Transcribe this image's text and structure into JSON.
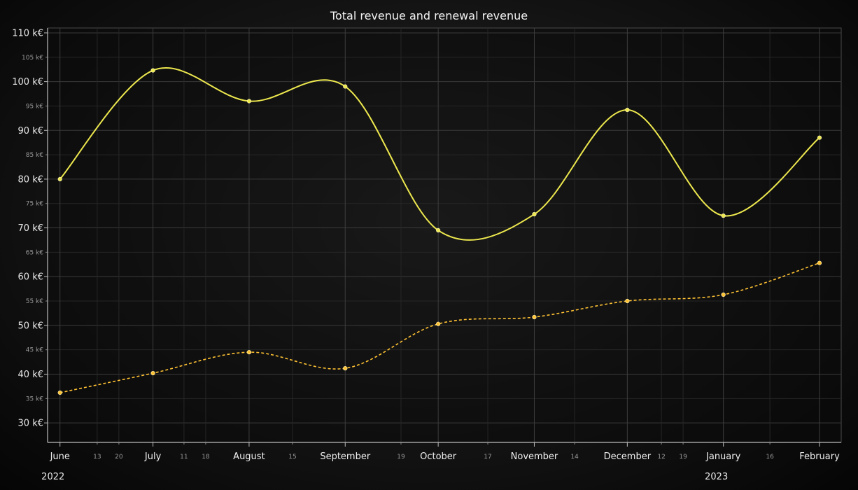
{
  "chart_data": {
    "type": "line",
    "title": "Total revenue and renewal revenue",
    "xlabel": "",
    "ylabel": "",
    "ylim": [
      26,
      111
    ],
    "grid": true,
    "legend": "none",
    "y_ticks_major": [
      {
        "value": 110,
        "label": "110 k€"
      },
      {
        "value": 100,
        "label": "100 k€"
      },
      {
        "value": 90,
        "label": "90 k€"
      },
      {
        "value": 80,
        "label": "80 k€"
      },
      {
        "value": 70,
        "label": "70 k€"
      },
      {
        "value": 60,
        "label": "60 k€"
      },
      {
        "value": 50,
        "label": "50 k€"
      },
      {
        "value": 40,
        "label": "40 k€"
      },
      {
        "value": 30,
        "label": "30 k€"
      }
    ],
    "y_ticks_minor": [
      {
        "value": 105,
        "label": "105 k€"
      },
      {
        "value": 95,
        "label": "95 k€"
      },
      {
        "value": 85,
        "label": "85 k€"
      },
      {
        "value": 75,
        "label": "75 k€"
      },
      {
        "value": 65,
        "label": "65 k€"
      },
      {
        "value": 55,
        "label": "55 k€"
      },
      {
        "value": 45,
        "label": "45 k€"
      },
      {
        "value": 35,
        "label": "35 k€"
      }
    ],
    "xlim": [
      "2022-05-28",
      "2023-02-08"
    ],
    "x_ticks_major": [
      {
        "date": "2022-06-01",
        "label": "June"
      },
      {
        "date": "2022-07-01",
        "label": "July"
      },
      {
        "date": "2022-08-01",
        "label": "August"
      },
      {
        "date": "2022-09-01",
        "label": "September"
      },
      {
        "date": "2022-10-01",
        "label": "October"
      },
      {
        "date": "2022-11-01",
        "label": "November"
      },
      {
        "date": "2022-12-01",
        "label": "December"
      },
      {
        "date": "2023-01-01",
        "label": "January"
      },
      {
        "date": "2023-02-01",
        "label": "February"
      }
    ],
    "x_ticks_minor": [
      {
        "date": "2022-06-13",
        "label": "13"
      },
      {
        "date": "2022-06-20",
        "label": "20"
      },
      {
        "date": "2022-07-11",
        "label": "11"
      },
      {
        "date": "2022-07-18",
        "label": "18"
      },
      {
        "date": "2022-08-15",
        "label": "15"
      },
      {
        "date": "2022-09-19",
        "label": "19"
      },
      {
        "date": "2022-10-17",
        "label": "17"
      },
      {
        "date": "2022-11-14",
        "label": "14"
      },
      {
        "date": "2022-12-12",
        "label": "12"
      },
      {
        "date": "2022-12-19",
        "label": "19"
      },
      {
        "date": "2023-01-16",
        "label": "16"
      }
    ],
    "x_years": [
      {
        "date": "2022-06-01",
        "label": "2022"
      },
      {
        "date": "2023-01-01",
        "label": "2023"
      }
    ],
    "x": [
      "2022-06-01",
      "2022-07-01",
      "2022-08-01",
      "2022-09-01",
      "2022-10-01",
      "2022-11-01",
      "2022-12-01",
      "2023-01-01",
      "2023-02-01"
    ],
    "series": [
      {
        "values": [
          80,
          102.3,
          96,
          99,
          69.5,
          72.8,
          94.2,
          72.5,
          88.5
        ],
        "color": "#ede84e",
        "style": "solid"
      },
      {
        "values": [
          36.2,
          40.2,
          44.5,
          41.2,
          50.3,
          51.7,
          55.0,
          56.3,
          62.8
        ],
        "color": "#ffc233",
        "style": "dashed"
      }
    ]
  }
}
